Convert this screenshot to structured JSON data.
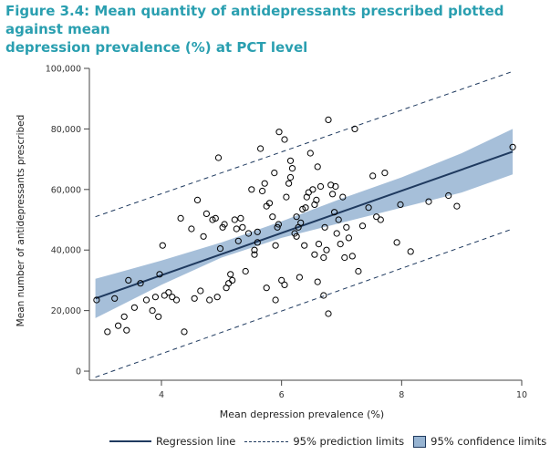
{
  "figure": {
    "title_line1": "Figure 3.4: Mean quantity of antidepressants prescribed plotted against mean",
    "title_line2": "depression prevalence (%) at PCT level"
  },
  "colors": {
    "title": "#2a9fb0",
    "regression_line": "#1f3a5f",
    "confidence_band": "#97b4d2",
    "points": "#000000"
  },
  "chart_data": {
    "type": "scatter",
    "title": "Figure 3.4: Mean quantity of antidepressants prescribed plotted against mean depression prevalence (%) at PCT level",
    "xlabel": "Mean depression prevalence (%)",
    "ylabel": "Mean number of antidepressants prescribed",
    "xlim": [
      2.8,
      10
    ],
    "ylim": [
      -3000,
      100000
    ],
    "x_ticks": [
      4,
      6,
      8,
      10
    ],
    "x_tick_labels": [
      "4",
      "6",
      "8",
      "10"
    ],
    "y_ticks": [
      0,
      20000,
      40000,
      60000,
      80000,
      100000
    ],
    "y_tick_labels": [
      "0",
      "20,000",
      "40,000",
      "60,000",
      "80,000",
      "100,000"
    ],
    "grid": false,
    "legend_position": "bottom",
    "legend": [
      "Regression line",
      "95% prediction limits",
      "95% confidence limits"
    ],
    "regression": {
      "x": [
        2.9,
        9.85
      ],
      "y": [
        24000,
        72500
      ]
    },
    "confidence_band": {
      "x": [
        2.9,
        4.0,
        5.0,
        6.0,
        7.0,
        8.0,
        9.0,
        9.85
      ],
      "lower": [
        17500,
        28500,
        37500,
        44000,
        49000,
        54000,
        59000,
        65000
      ],
      "upper": [
        30500,
        36500,
        42500,
        49500,
        57000,
        64000,
        72000,
        80000
      ]
    },
    "prediction_lower": {
      "x": [
        2.9,
        9.85
      ],
      "y": [
        -2000,
        47000
      ]
    },
    "prediction_upper": {
      "x": [
        2.9,
        9.85
      ],
      "y": [
        51000,
        99000
      ]
    },
    "points": [
      [
        2.92,
        23500
      ],
      [
        3.1,
        13000
      ],
      [
        3.22,
        24000
      ],
      [
        3.28,
        15000
      ],
      [
        3.38,
        18000
      ],
      [
        3.42,
        13500
      ],
      [
        3.45,
        30000
      ],
      [
        3.55,
        21000
      ],
      [
        3.65,
        29000
      ],
      [
        3.75,
        23500
      ],
      [
        3.85,
        20000
      ],
      [
        3.9,
        24500
      ],
      [
        3.95,
        18000
      ],
      [
        3.97,
        32000
      ],
      [
        4.02,
        41500
      ],
      [
        4.05,
        25000
      ],
      [
        4.12,
        26000
      ],
      [
        4.18,
        24500
      ],
      [
        4.25,
        23500
      ],
      [
        4.32,
        50500
      ],
      [
        4.38,
        13000
      ],
      [
        4.5,
        47000
      ],
      [
        4.55,
        24000
      ],
      [
        4.6,
        56500
      ],
      [
        4.65,
        26500
      ],
      [
        4.7,
        44500
      ],
      [
        4.75,
        52000
      ],
      [
        4.8,
        23500
      ],
      [
        4.85,
        50000
      ],
      [
        4.9,
        50500
      ],
      [
        4.93,
        24500
      ],
      [
        4.95,
        70500
      ],
      [
        4.98,
        40500
      ],
      [
        5.02,
        47500
      ],
      [
        5.05,
        48500
      ],
      [
        5.08,
        27500
      ],
      [
        5.12,
        29000
      ],
      [
        5.15,
        32000
      ],
      [
        5.18,
        30000
      ],
      [
        5.22,
        50000
      ],
      [
        5.25,
        47000
      ],
      [
        5.28,
        43000
      ],
      [
        5.32,
        50500
      ],
      [
        5.35,
        47500
      ],
      [
        5.4,
        33000
      ],
      [
        5.45,
        45500
      ],
      [
        5.5,
        60000
      ],
      [
        5.55,
        40000
      ],
      [
        5.6,
        42500
      ],
      [
        5.65,
        73500
      ],
      [
        5.68,
        59500
      ],
      [
        5.72,
        62000
      ],
      [
        5.75,
        54500
      ],
      [
        5.8,
        55500
      ],
      [
        5.85,
        51000
      ],
      [
        5.88,
        65500
      ],
      [
        5.9,
        41500
      ],
      [
        5.93,
        47500
      ],
      [
        5.96,
        79000
      ],
      [
        6.0,
        30000
      ],
      [
        6.05,
        76500
      ],
      [
        6.08,
        57500
      ],
      [
        6.12,
        62000
      ],
      [
        6.15,
        69500
      ],
      [
        6.18,
        67000
      ],
      [
        6.22,
        45500
      ],
      [
        6.25,
        44500
      ],
      [
        6.28,
        47500
      ],
      [
        6.32,
        49000
      ],
      [
        6.35,
        53500
      ],
      [
        6.38,
        41500
      ],
      [
        6.42,
        57500
      ],
      [
        6.45,
        59000
      ],
      [
        6.48,
        72000
      ],
      [
        6.52,
        60000
      ],
      [
        6.55,
        55000
      ],
      [
        6.58,
        56500
      ],
      [
        6.62,
        42000
      ],
      [
        6.65,
        61000
      ],
      [
        6.7,
        37500
      ],
      [
        6.72,
        47500
      ],
      [
        6.75,
        40000
      ],
      [
        6.78,
        83000
      ],
      [
        6.82,
        61500
      ],
      [
        6.85,
        58500
      ],
      [
        6.88,
        52500
      ],
      [
        6.92,
        45500
      ],
      [
        6.95,
        50000
      ],
      [
        6.98,
        42000
      ],
      [
        7.02,
        57500
      ],
      [
        7.05,
        37500
      ],
      [
        7.08,
        47500
      ],
      [
        7.12,
        44000
      ],
      [
        7.18,
        38000
      ],
      [
        7.22,
        80000
      ],
      [
        7.28,
        33000
      ],
      [
        7.35,
        48000
      ],
      [
        7.45,
        54000
      ],
      [
        7.52,
        64500
      ],
      [
        7.58,
        51000
      ],
      [
        7.65,
        50000
      ],
      [
        7.72,
        65500
      ],
      [
        7.92,
        42500
      ],
      [
        7.98,
        55000
      ],
      [
        8.15,
        39500
      ],
      [
        8.45,
        56000
      ],
      [
        8.78,
        58000
      ],
      [
        8.92,
        54500
      ],
      [
        9.85,
        74000
      ],
      [
        5.55,
        38500
      ],
      [
        5.75,
        27500
      ],
      [
        5.9,
        23500
      ],
      [
        6.05,
        28500
      ],
      [
        6.3,
        31000
      ],
      [
        6.6,
        29500
      ],
      [
        6.78,
        19000
      ],
      [
        6.7,
        25000
      ],
      [
        5.6,
        46000
      ],
      [
        5.95,
        48500
      ],
      [
        6.25,
        51000
      ],
      [
        6.4,
        54000
      ],
      [
        6.55,
        38500
      ],
      [
        6.9,
        61000
      ],
      [
        6.6,
        67500
      ],
      [
        6.15,
        64000
      ]
    ]
  }
}
